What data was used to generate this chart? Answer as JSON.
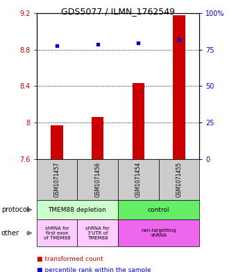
{
  "title": "GDS5077 / ILMN_1762549",
  "samples": [
    "GSM1071457",
    "GSM1071456",
    "GSM1071454",
    "GSM1071455"
  ],
  "bar_values": [
    7.97,
    8.06,
    8.43,
    9.18
  ],
  "bar_bottom": 7.6,
  "dot_values": [
    8.845,
    8.855,
    8.875,
    8.91
  ],
  "ylim_left": [
    7.6,
    9.2
  ],
  "ylim_right": [
    0,
    100
  ],
  "yticks_left": [
    7.6,
    8.0,
    8.4,
    8.8,
    9.2
  ],
  "ytick_labels_left": [
    "7.6",
    "8",
    "8.4",
    "8.8",
    "9.2"
  ],
  "yticks_right": [
    0,
    25,
    50,
    75,
    100
  ],
  "ytick_labels_right": [
    "0",
    "25",
    "50",
    "75",
    "100%"
  ],
  "bar_color": "#cc0000",
  "dot_color": "#0000cc",
  "protocol_labels": [
    "TMEM88 depletion",
    "control"
  ],
  "protocol_colors": [
    "#ccffcc",
    "#66ee66"
  ],
  "other_labels": [
    "shRNA for\nfirst exon\nof TMEM88",
    "shRNA for\n3'UTR of\nTMEM88",
    "non-targetting\nshRNA"
  ],
  "other_colors": [
    "#ffccff",
    "#ffccff",
    "#ee66ee"
  ],
  "legend_bar_label": "transformed count",
  "legend_dot_label": "percentile rank within the sample",
  "sample_bg_color": "#cccccc",
  "bar_width": 0.3
}
